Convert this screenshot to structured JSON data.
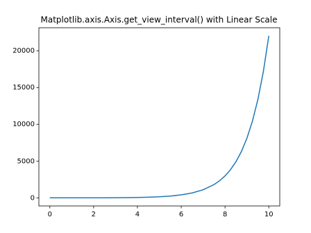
{
  "chart_data": {
    "type": "line",
    "title": "Matplotlib.axis.Axis.get_view_interval() with Linear Scale",
    "x": [
      0,
      0.5,
      1,
      1.5,
      2,
      2.5,
      3,
      3.5,
      4,
      4.5,
      5,
      5.5,
      6,
      6.5,
      7,
      7.5,
      7.75,
      8,
      8.25,
      8.5,
      8.75,
      9,
      9.25,
      9.5,
      9.75,
      10
    ],
    "series": [
      {
        "color": "#1f77b4",
        "values": [
          1,
          1.65,
          2.72,
          4.48,
          7.39,
          12.18,
          20.09,
          33.12,
          54.6,
          90.02,
          148.4,
          244.7,
          403.4,
          665.1,
          1096.6,
          1808,
          2322,
          2981,
          3827,
          4915,
          6310,
          8103,
          10405,
          13360,
          17154,
          22026
        ]
      }
    ],
    "xlim": [
      -0.5,
      10.5
    ],
    "xticks": [
      0,
      2,
      4,
      6,
      8,
      10
    ],
    "ylim": [
      -1101,
      23127
    ],
    "yticks": [
      0,
      5000,
      10000,
      15000,
      20000
    ]
  }
}
